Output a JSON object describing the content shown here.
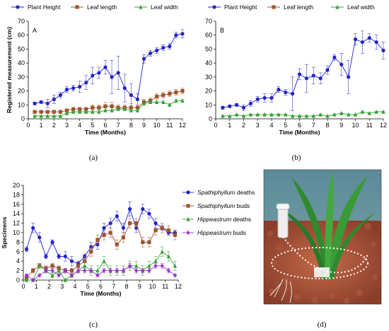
{
  "captions": [
    "(a)",
    "(b)",
    "(c)",
    "(d)"
  ],
  "colors": {
    "blue": "#2222cc",
    "brown": "#a0522d",
    "green": "#33a033",
    "purple": "#9933cc"
  },
  "chart_data": [
    {
      "type": "line",
      "panel_letter": "A",
      "xlabel": "Time (Months)",
      "ylabel": "Registered measurement (cm)",
      "xlim": [
        0,
        12
      ],
      "ylim": [
        0,
        70
      ],
      "xticks": [
        0,
        1,
        2,
        3,
        4,
        5,
        6,
        7,
        8,
        9,
        10,
        11,
        12
      ],
      "yticks": [
        0,
        10,
        20,
        30,
        40,
        50,
        60,
        70
      ],
      "legend": "top",
      "series": [
        {
          "name": "Plant Height",
          "color": "#2222cc",
          "marker": "circle",
          "x": [
            0.5,
            1,
            1.5,
            2,
            2.5,
            3,
            3.5,
            4,
            4.5,
            5,
            5.5,
            6,
            6.5,
            7,
            7.5,
            8,
            8.5,
            9,
            9.5,
            10,
            10.5,
            11,
            11.5,
            12
          ],
          "y": [
            11,
            12,
            11,
            14,
            17,
            21,
            22,
            23,
            26,
            31,
            33,
            37,
            30,
            33,
            22,
            17,
            14,
            43,
            47,
            49,
            51,
            52,
            60,
            61
          ],
          "err": [
            1,
            1,
            3,
            3,
            2,
            2,
            2,
            4,
            5,
            6,
            4,
            5,
            12,
            12,
            10,
            8,
            4,
            3,
            2,
            2,
            2,
            2,
            2,
            3
          ]
        },
        {
          "name": "Leaf length",
          "color": "#a0522d",
          "marker": "square",
          "x": [
            0.5,
            1,
            1.5,
            2,
            2.5,
            3,
            3.5,
            4,
            4.5,
            5,
            5.5,
            6,
            6.5,
            7,
            7.5,
            8,
            8.5,
            9,
            9.5,
            10,
            10.5,
            11,
            11.5,
            12
          ],
          "y": [
            5,
            5,
            5,
            5,
            5,
            6,
            7,
            7,
            7,
            8,
            8,
            9,
            9,
            8,
            8,
            8,
            8,
            12,
            13,
            16,
            17,
            18,
            19,
            20
          ],
          "err": [
            0.5,
            0.5,
            0.5,
            0.5,
            0.5,
            1,
            1,
            1,
            1,
            2,
            2,
            3,
            3,
            2,
            2,
            3,
            2,
            2,
            2,
            2,
            2,
            2,
            2,
            2
          ]
        },
        {
          "name": "Leaf width",
          "color": "#33a033",
          "marker": "triangle",
          "x": [
            0.5,
            1,
            1.5,
            2,
            2.5,
            3,
            3.5,
            4,
            4.5,
            5,
            5.5,
            6,
            6.5,
            7,
            7.5,
            8,
            8.5,
            9,
            9.5,
            10,
            10.5,
            11,
            11.5,
            12
          ],
          "y": [
            2,
            2,
            2,
            2,
            2,
            4,
            5,
            5,
            5,
            5,
            5,
            6,
            6,
            7,
            7,
            6,
            6,
            11,
            12,
            12,
            12,
            10,
            13,
            13
          ],
          "err": [
            0.3,
            0.3,
            0.3,
            0.3,
            0.3,
            0.5,
            0.5,
            0.5,
            0.5,
            1,
            1,
            1,
            1,
            1,
            1,
            1,
            1,
            1,
            1,
            1,
            1,
            1,
            1,
            1
          ]
        }
      ]
    },
    {
      "type": "line",
      "panel_letter": "B",
      "xlabel": "Time (Months)",
      "ylabel": "",
      "xlim": [
        0,
        12
      ],
      "ylim": [
        0,
        70
      ],
      "xticks": [
        0,
        1,
        2,
        3,
        4,
        5,
        6,
        7,
        8,
        9,
        10,
        11,
        12
      ],
      "yticks": [
        0,
        10,
        20,
        30,
        40,
        50,
        60,
        70
      ],
      "legend": "top",
      "series": [
        {
          "name": "Plant Height",
          "color": "#2222cc",
          "marker": "circle",
          "x": [
            0.5,
            1,
            1.5,
            2,
            2.5,
            3,
            3.5,
            4,
            4.5,
            5,
            5.5,
            6,
            6.5,
            7,
            7.5,
            8,
            8.5,
            9,
            9.5,
            10,
            10.5,
            11,
            11.5,
            12
          ],
          "y": [
            8,
            9,
            10,
            8,
            11,
            14,
            15,
            15,
            21,
            19,
            18,
            32,
            29,
            31,
            29,
            35,
            44,
            39,
            30,
            57,
            55,
            58,
            55,
            49
          ],
          "err": [
            1,
            1,
            1,
            2,
            2,
            2,
            3,
            3,
            2,
            2,
            12,
            4,
            10,
            6,
            4,
            3,
            2,
            8,
            12,
            4,
            8,
            3,
            5,
            6
          ]
        },
        {
          "name": "Leaf length",
          "color": "#a0522d",
          "marker": "square",
          "x": [],
          "y": [],
          "err": []
        },
        {
          "name": "Leaf width",
          "color": "#33a033",
          "marker": "triangle",
          "x": [
            0.5,
            1,
            1.5,
            2,
            2.5,
            3,
            3.5,
            4,
            4.5,
            5,
            5.5,
            6,
            6.5,
            7,
            7.5,
            8,
            8.5,
            9,
            9.5,
            10,
            10.5,
            11,
            11.5,
            12
          ],
          "y": [
            2,
            2,
            3,
            2,
            3,
            3,
            3,
            3,
            3,
            3,
            2,
            2,
            2,
            2,
            3,
            2,
            3,
            4,
            3,
            3,
            5,
            4,
            5,
            5
          ],
          "err": [
            0.5,
            0.5,
            0.5,
            0.5,
            0.5,
            0.5,
            0.5,
            0.5,
            0.5,
            0.5,
            0.5,
            0.5,
            0.5,
            0.5,
            0.5,
            0.5,
            0.5,
            0.5,
            0.5,
            0.5,
            0.5,
            0.5,
            0.5,
            0.5
          ]
        }
      ]
    },
    {
      "type": "line",
      "xlabel": "Time (Months)",
      "ylabel": "Specimens",
      "xlim": [
        0,
        12
      ],
      "ylim": [
        0,
        20
      ],
      "xticks": [
        0,
        1,
        2,
        3,
        4,
        5,
        6,
        7,
        8,
        9,
        10,
        11,
        12
      ],
      "yticks": [
        0,
        2,
        4,
        6,
        8,
        10,
        12,
        14,
        16,
        18,
        20
      ],
      "legend": "right",
      "series": [
        {
          "name_italic": "Spathiphyllum",
          "name_rest": " deaths",
          "color": "#2222cc",
          "marker": "circle",
          "x": [
            0.25,
            0.75,
            1.25,
            1.75,
            2.25,
            2.75,
            3.25,
            3.75,
            4.25,
            4.75,
            5.25,
            5.75,
            6.25,
            6.75,
            7.25,
            7.75,
            8.25,
            8.75,
            9.25,
            9.75,
            10.25,
            10.75,
            11.25,
            11.75
          ],
          "y": [
            6.5,
            11,
            9,
            5,
            8,
            5,
            5,
            4,
            3.5,
            5,
            7,
            7.5,
            11,
            12,
            13.5,
            11,
            15,
            11,
            15,
            14,
            12,
            11,
            10,
            10
          ],
          "err": [
            0.5,
            1,
            1,
            0.5,
            0.5,
            0.5,
            1,
            1,
            0.5,
            0.5,
            1,
            1,
            1,
            1,
            1,
            1,
            1.5,
            1,
            1,
            1,
            1,
            0.5,
            0.5,
            0.5
          ]
        },
        {
          "name_italic": "Spathiphyllum",
          "name_rest": " buds",
          "color": "#a0522d",
          "marker": "square",
          "x": [
            0.25,
            0.75,
            1.25,
            1.75,
            2.25,
            2.75,
            3.25,
            3.75,
            4.25,
            4.75,
            5.25,
            5.75,
            6.25,
            6.75,
            7.25,
            7.75,
            8.25,
            8.75,
            9.25,
            9.75,
            10.25,
            10.75,
            11.25,
            11.75
          ],
          "y": [
            0.5,
            2,
            3,
            2.5,
            3,
            2.5,
            2,
            2,
            3,
            4,
            6,
            8.5,
            9.5,
            10,
            7.5,
            9,
            12,
            12,
            8,
            8,
            10.5,
            11,
            10.5,
            9.5
          ],
          "err": [
            0.3,
            0.5,
            0.5,
            0.5,
            0.5,
            0.5,
            0.5,
            0.5,
            0.5,
            1,
            1,
            1,
            1,
            1,
            1,
            1,
            1,
            1,
            1,
            1,
            1,
            1,
            1,
            1
          ]
        },
        {
          "name_italic": "Hippeastrum",
          "name_rest": " deaths",
          "color": "#33a033",
          "marker": "triangle",
          "x": [
            0.25,
            0.75,
            1.25,
            1.75,
            2.25,
            2.75,
            3.25,
            3.75,
            4.25,
            4.75,
            5.25,
            5.75,
            6.25,
            6.75,
            7.25,
            7.75,
            8.25,
            8.75,
            9.25,
            9.75,
            10.25,
            10.75,
            11.25,
            11.75
          ],
          "y": [
            0,
            0,
            3,
            2,
            1,
            2,
            0,
            1,
            2,
            3,
            2,
            2,
            4,
            2,
            2,
            2,
            3,
            3,
            2,
            3,
            4,
            6,
            5,
            3
          ],
          "err": [
            0.3,
            0.3,
            0.5,
            0.5,
            0.5,
            0.5,
            0.3,
            0.5,
            0.5,
            1,
            1,
            1,
            1,
            1,
            1,
            1,
            1,
            1,
            1,
            1,
            1,
            1,
            1,
            1
          ]
        },
        {
          "name_italic": "Hippeastrum",
          "name_rest": " buds",
          "color": "#9933cc",
          "marker": "diamond",
          "x": [
            0.25,
            0.75,
            1.25,
            1.75,
            2.25,
            2.75,
            3.25,
            3.75,
            4.25,
            4.75,
            5.25,
            5.75,
            6.25,
            6.75,
            7.25,
            7.75,
            8.25,
            8.75,
            9.25,
            9.75,
            10.25,
            10.75,
            11.25,
            11.75
          ],
          "y": [
            1,
            0,
            1,
            2,
            2,
            1,
            2,
            1,
            2,
            2,
            2,
            1,
            2,
            2,
            2,
            2,
            3,
            2,
            2,
            2,
            3,
            3,
            2,
            1
          ],
          "err": [
            0.3,
            0.3,
            0.3,
            0.5,
            0.5,
            0.3,
            0.5,
            0.3,
            0.5,
            0.5,
            0.5,
            0.3,
            0.5,
            0.5,
            0.5,
            0.5,
            0.5,
            0.5,
            0.5,
            0.5,
            0.5,
            0.5,
            0.5,
            0.3
          ]
        }
      ]
    }
  ]
}
